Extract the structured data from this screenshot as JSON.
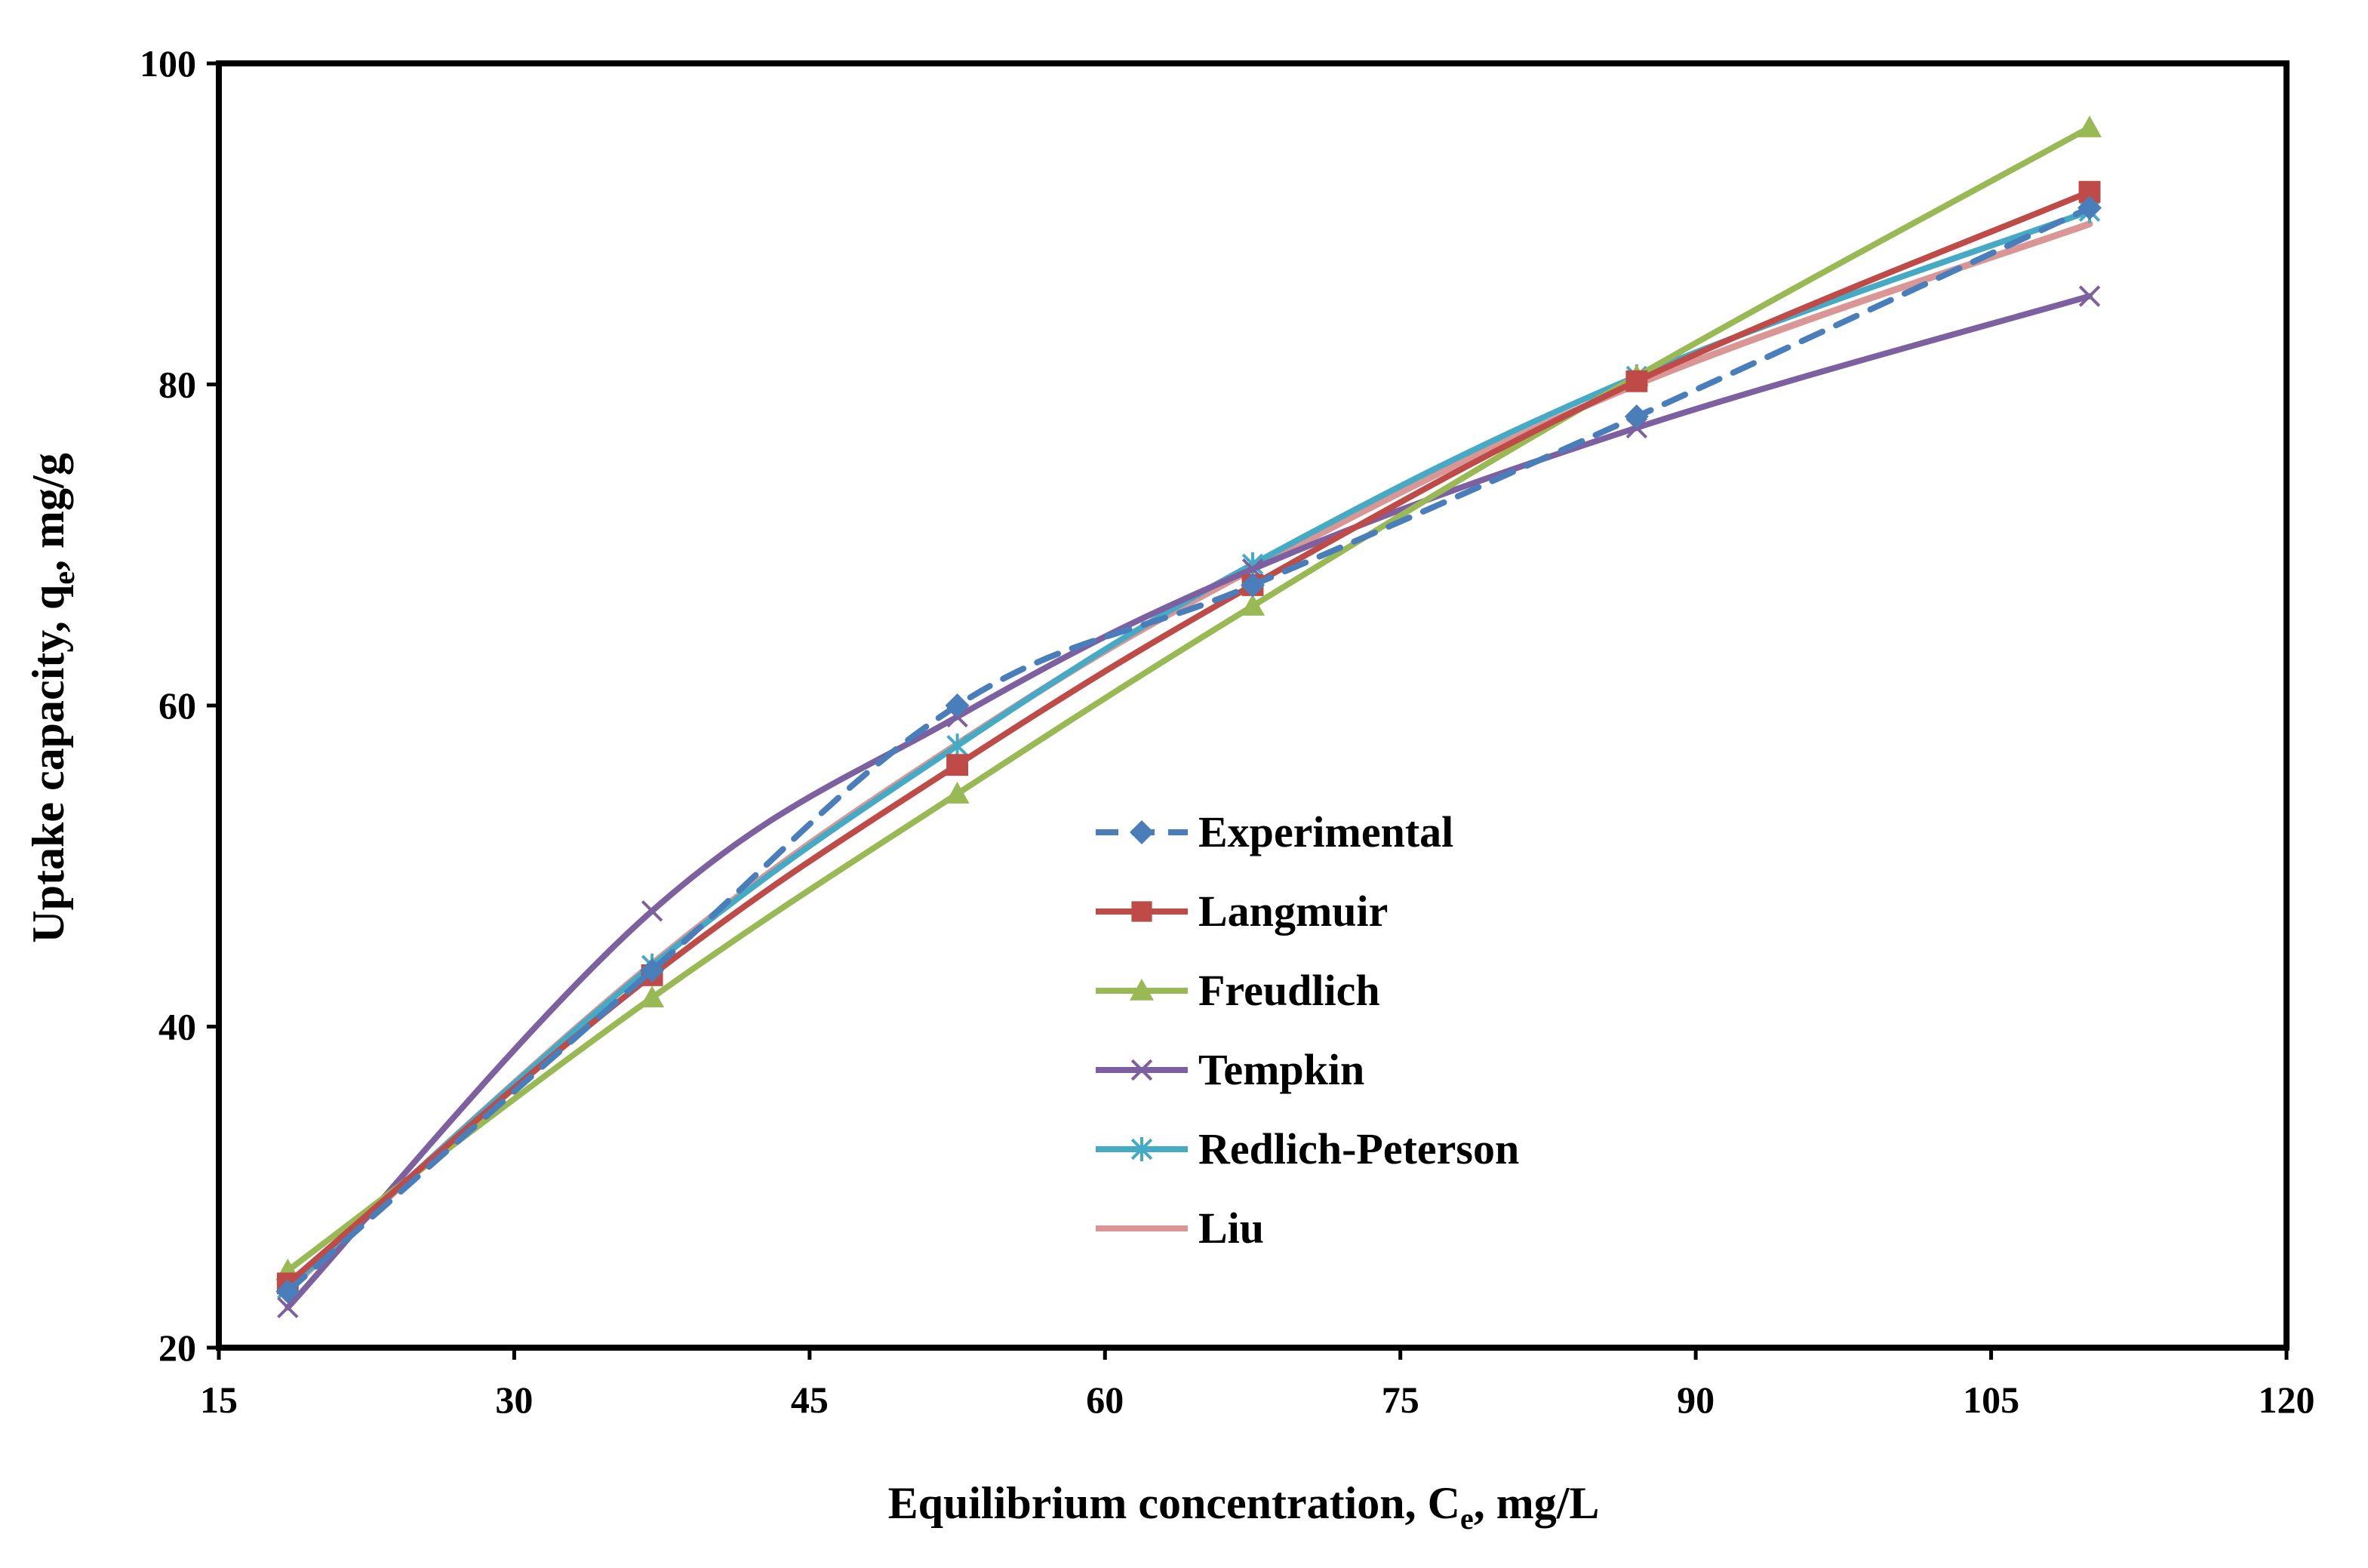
{
  "chart_data": {
    "type": "line",
    "xlabel": "Equilibrium concentration, C",
    "xlabel_sub": "e",
    "xlabel_suffix": ", mg/L",
    "ylabel": "Uptake capacity, q",
    "ylabel_sub": "e",
    "ylabel_suffix": ", mg/g",
    "xlim": [
      15,
      120
    ],
    "ylim": [
      20,
      100
    ],
    "xticks": [
      15,
      30,
      45,
      60,
      75,
      90,
      105,
      120
    ],
    "yticks": [
      20,
      40,
      60,
      80,
      100
    ],
    "x": [
      18.5,
      37,
      52.5,
      67.5,
      87,
      110
    ],
    "legend_position": "center",
    "series": [
      {
        "name": "Experimental",
        "color": "#4a7ebb",
        "marker": "diamond",
        "dashed": true,
        "values": [
          23.5,
          43.5,
          60,
          67.5,
          78,
          91
        ]
      },
      {
        "name": "Langmuir",
        "color": "#be4b48",
        "marker": "square",
        "dashed": false,
        "values": [
          24,
          43.2,
          56.3,
          67.5,
          80.2,
          92
        ]
      },
      {
        "name": "Freudlich",
        "color": "#98b954",
        "marker": "triangle",
        "dashed": false,
        "values": [
          24.8,
          41.8,
          54.5,
          66.2,
          80.5,
          96
        ]
      },
      {
        "name": "Tempkin",
        "color": "#7d60a0",
        "marker": "x",
        "dashed": false,
        "values": [
          22.5,
          47.2,
          59.3,
          68.5,
          77.3,
          85.5
        ]
      },
      {
        "name": "Redlich-Peterson",
        "color": "#46aac5",
        "marker": "asterisk",
        "dashed": false,
        "values": [
          23.7,
          43.8,
          57.5,
          68.8,
          80.5,
          90.8
        ]
      },
      {
        "name": "Liu",
        "color": "#d99694",
        "marker": "none",
        "dashed": false,
        "values": [
          23.6,
          43.9,
          57.6,
          68.5,
          80,
          90
        ]
      }
    ]
  }
}
